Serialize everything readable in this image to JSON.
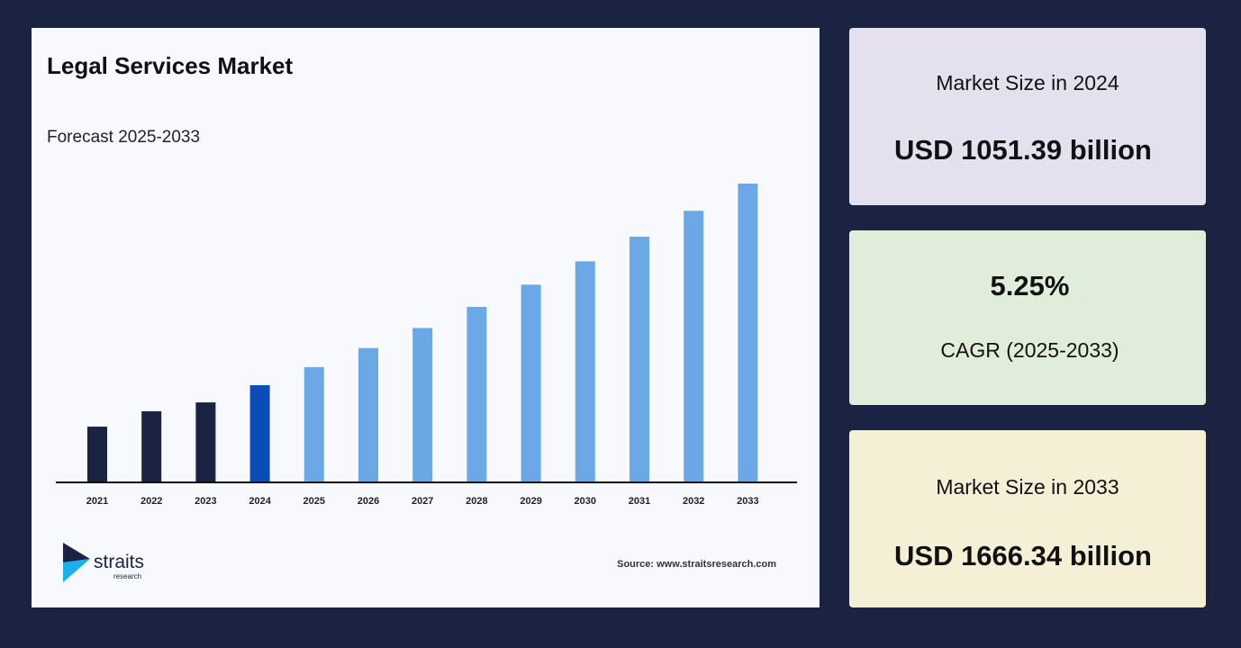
{
  "chart_data": {
    "type": "bar",
    "title": "Legal Services Market",
    "subtitle": "Forecast 2025-2033",
    "xlabel": "",
    "ylabel": "",
    "categories": [
      "2021",
      "2022",
      "2023",
      "2024",
      "2025",
      "2026",
      "2027",
      "2028",
      "2029",
      "2030",
      "2031",
      "2032",
      "2033"
    ],
    "values": [
      925,
      972,
      999,
      1051.39,
      1106.6,
      1164.7,
      1225.9,
      1290.3,
      1358.0,
      1429.3,
      1504.3,
      1583.3,
      1666.34
    ],
    "colors": {
      "historical": "#1a2341",
      "base_year": "#0a4db8",
      "forecast": "#6aa8e6"
    },
    "grid": false,
    "source": "Source: www.straitsresearch.com"
  },
  "logo": {
    "name": "straits",
    "sub": "research"
  },
  "cards": [
    {
      "label": "Market Size in 2024",
      "value": "USD 1051.39 billion",
      "color": "#e5e0ee"
    },
    {
      "label": "CAGR (2025-2033)",
      "value": "5.25%",
      "color": "#e1eddb"
    },
    {
      "label": "Market Size in 2033",
      "value": "USD 1666.34 billion",
      "color": "#f5efd5"
    }
  ]
}
